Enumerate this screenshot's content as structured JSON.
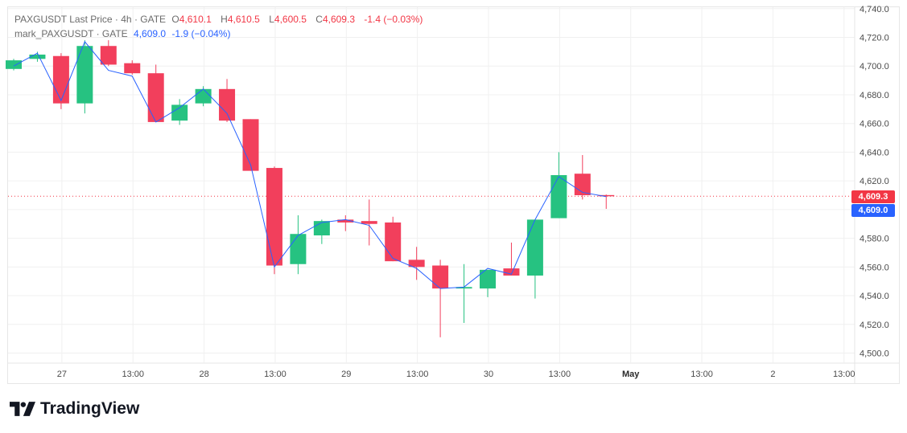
{
  "legend": {
    "symbol": "PAXGUSDT Last Price · 4h · GATE",
    "open_label": "O",
    "open": "4,610.1",
    "high_label": "H",
    "high": "4,610.5",
    "low_label": "L",
    "low": "4,600.5",
    "close_label": "C",
    "close": "4,609.3",
    "change": "-1.4 (−0.03%)",
    "mark_symbol": "mark_PAXGUSDT · GATE",
    "mark_value": "4,609.0",
    "mark_change": "-1.9 (−0.04%)"
  },
  "badges": {
    "last": "4,609.3",
    "mark": "4,609.0"
  },
  "brand": {
    "name": "TradingView",
    "logo_icon": "tradingview-logo-icon"
  },
  "colors": {
    "up": "#26c281",
    "down": "#f23f5c",
    "mark_line": "#2962ff",
    "grid": "#f0f0f0"
  },
  "chart_data": {
    "type": "candlestick",
    "interval": "4h",
    "y_ticks": [
      "4,500.0",
      "4,520.0",
      "4,540.0",
      "4,560.0",
      "4,580.0",
      "4,600.0",
      "4,620.0",
      "4,640.0",
      "4,660.0",
      "4,680.0",
      "4,700.0",
      "4,720.0",
      "4,740.0"
    ],
    "y_tick_values": [
      4500,
      4520,
      4540,
      4560,
      4580,
      4600,
      4620,
      4640,
      4660,
      4680,
      4700,
      4720,
      4740
    ],
    "ylim": [
      4493,
      4741
    ],
    "x_ticks": [
      {
        "label": "27",
        "bar": 2,
        "bold": false
      },
      {
        "label": "13:00",
        "bar": 5,
        "bold": false
      },
      {
        "label": "28",
        "bar": 8,
        "bold": false
      },
      {
        "label": "13:00",
        "bar": 11,
        "bold": false
      },
      {
        "label": "29",
        "bar": 14,
        "bold": false
      },
      {
        "label": "13:00",
        "bar": 17,
        "bold": false
      },
      {
        "label": "30",
        "bar": 20,
        "bold": false
      },
      {
        "label": "13:00",
        "bar": 23,
        "bold": false
      },
      {
        "label": "May",
        "bar": 26,
        "bold": true
      },
      {
        "label": "13:00",
        "bar": 29,
        "bold": false
      },
      {
        "label": "2",
        "bar": 32,
        "bold": false
      },
      {
        "label": "13:00",
        "bar": 35,
        "bold": false
      }
    ],
    "series": [
      {
        "name": "PAXGUSDT Last Price",
        "candles": [
          {
            "o": 4698,
            "h": 4705,
            "l": 4697,
            "c": 4704
          },
          {
            "o": 4705,
            "h": 4710,
            "l": 4703,
            "c": 4708
          },
          {
            "o": 4707,
            "h": 4709,
            "l": 4670,
            "c": 4674
          },
          {
            "o": 4674,
            "h": 4718,
            "l": 4667,
            "c": 4714
          },
          {
            "o": 4714,
            "h": 4718,
            "l": 4700,
            "c": 4701
          },
          {
            "o": 4702,
            "h": 4704,
            "l": 4694,
            "c": 4695
          },
          {
            "o": 4695,
            "h": 4701,
            "l": 4661,
            "c": 4661
          },
          {
            "o": 4662,
            "h": 4677,
            "l": 4659,
            "c": 4673
          },
          {
            "o": 4674,
            "h": 4686,
            "l": 4672,
            "c": 4684
          },
          {
            "o": 4684,
            "h": 4691,
            "l": 4661,
            "c": 4662
          },
          {
            "o": 4663,
            "h": 4663,
            "l": 4627,
            "c": 4627
          },
          {
            "o": 4629,
            "h": 4630,
            "l": 4555,
            "c": 4561
          },
          {
            "o": 4562,
            "h": 4596,
            "l": 4555,
            "c": 4583
          },
          {
            "o": 4582,
            "h": 4593,
            "l": 4576,
            "c": 4592
          },
          {
            "o": 4593,
            "h": 4596,
            "l": 4585,
            "c": 4591
          },
          {
            "o": 4592,
            "h": 4607,
            "l": 4575,
            "c": 4590
          },
          {
            "o": 4591,
            "h": 4595,
            "l": 4564,
            "c": 4564
          },
          {
            "o": 4565,
            "h": 4574,
            "l": 4551,
            "c": 4560
          },
          {
            "o": 4561,
            "h": 4565,
            "l": 4511,
            "c": 4545
          },
          {
            "o": 4545,
            "h": 4562,
            "l": 4521,
            "c": 4546
          },
          {
            "o": 4545,
            "h": 4558,
            "l": 4539,
            "c": 4558
          },
          {
            "o": 4559,
            "h": 4577,
            "l": 4554,
            "c": 4554
          },
          {
            "o": 4554,
            "h": 4593,
            "l": 4538,
            "c": 4593
          },
          {
            "o": 4594,
            "h": 4640,
            "l": 4594,
            "c": 4624
          },
          {
            "o": 4625,
            "h": 4638,
            "l": 4607,
            "c": 4610
          },
          {
            "o": 4610.1,
            "h": 4610.5,
            "l": 4600.5,
            "c": 4609.3
          }
        ]
      },
      {
        "name": "mark_PAXGUSDT",
        "values": [
          4700,
          4709,
          4676,
          4717,
          4697,
          4693,
          4661,
          4671,
          4684,
          4667,
          4631,
          4560,
          4582,
          4591,
          4593,
          4589,
          4566,
          4559,
          4545,
          4546,
          4559,
          4555,
          4593,
          4623,
          4612,
          4609
        ]
      }
    ],
    "last_price": 4609.3
  }
}
